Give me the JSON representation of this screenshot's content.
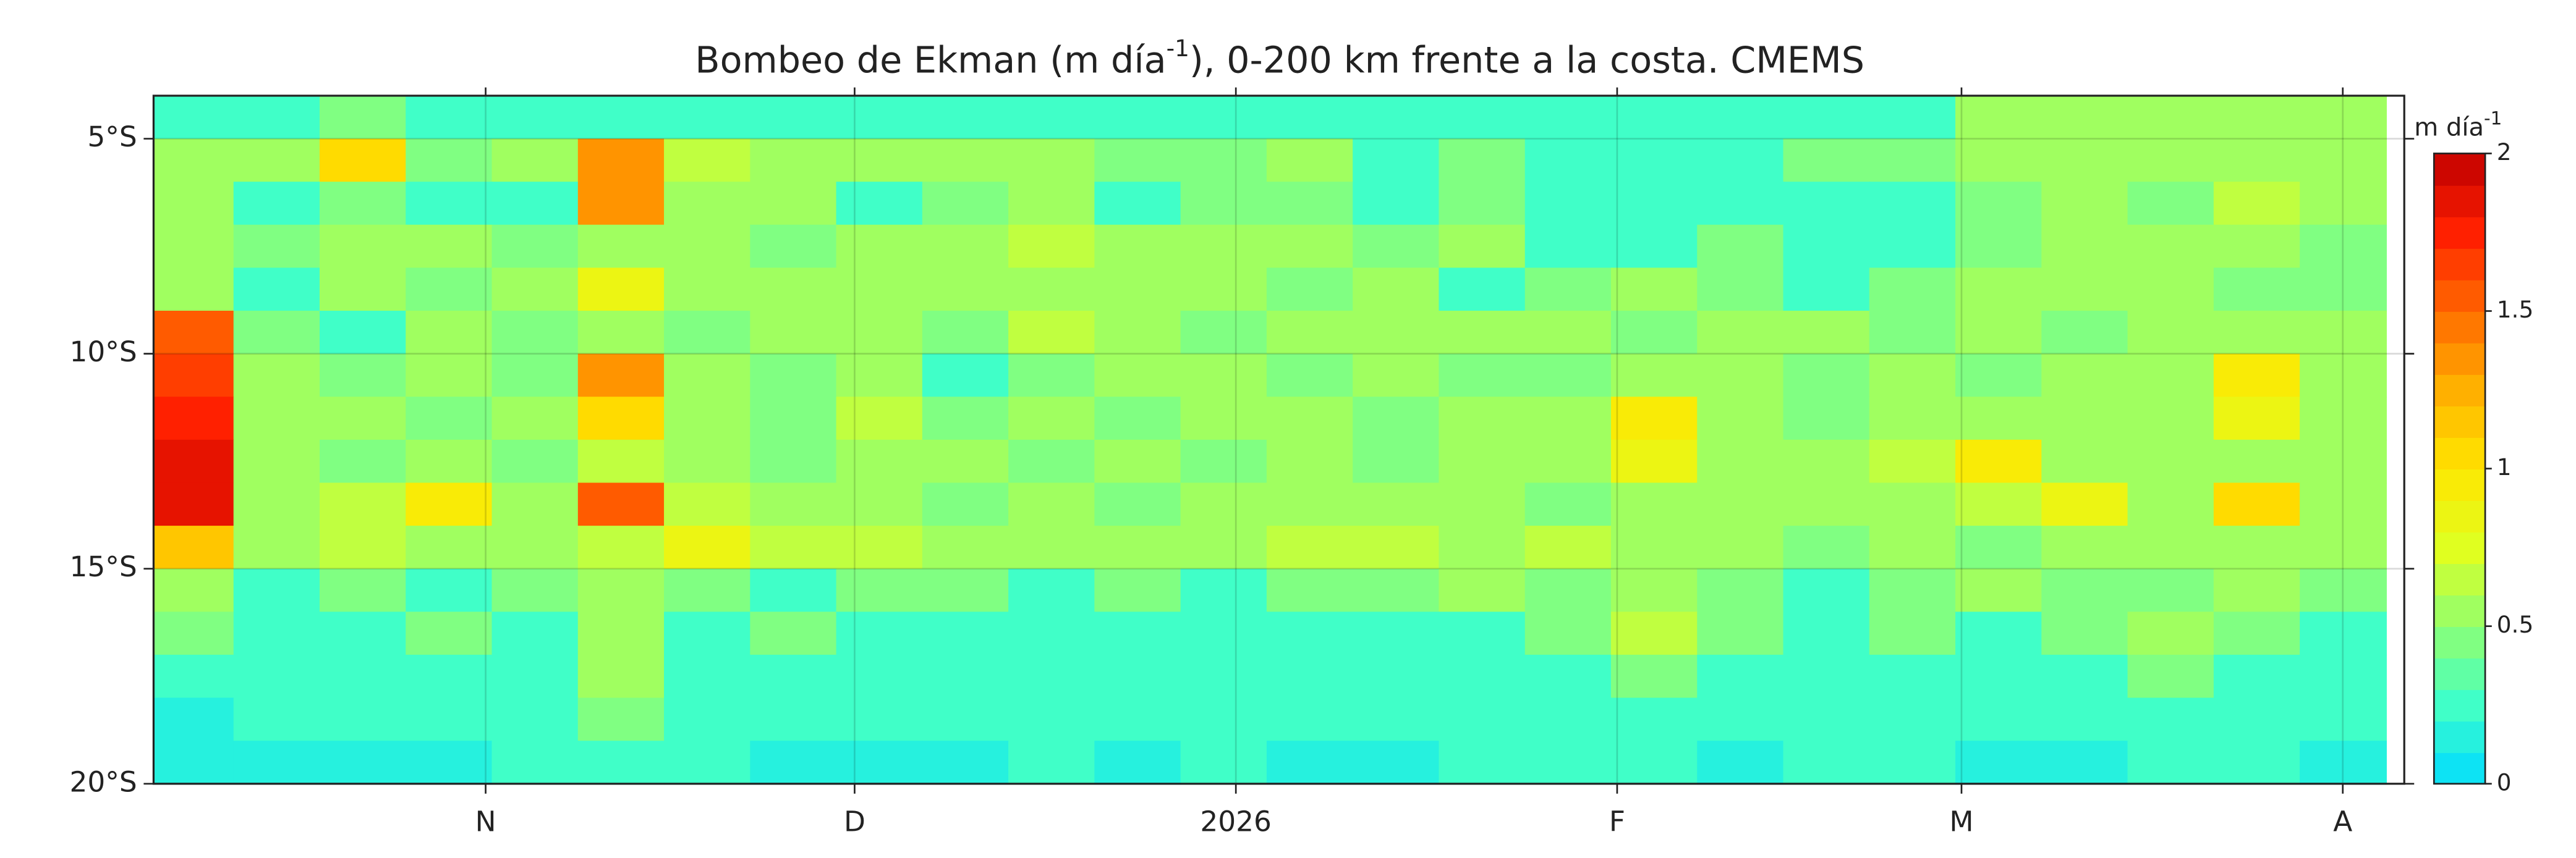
{
  "chart_data": {
    "type": "heatmap",
    "title": [
      "Bombeo de Ekman (m día",
      "-1",
      "), 0-200 km frente a la costa. CMEMS"
    ],
    "colorbar_label": [
      "m día",
      "-1"
    ],
    "xlim": [
      -27,
      156
    ],
    "xticks": [
      {
        "value": 0,
        "label": "N"
      },
      {
        "value": 30,
        "label": "D"
      },
      {
        "value": 61,
        "label": "2026"
      },
      {
        "value": 92,
        "label": "F"
      },
      {
        "value": 120,
        "label": "M"
      },
      {
        "value": 151,
        "label": "A"
      }
    ],
    "ylim": [
      -20,
      -4
    ],
    "yticks": [
      {
        "value": -5,
        "label": "5°S"
      },
      {
        "value": -10,
        "label": "10°S"
      },
      {
        "value": -15,
        "label": "15°S"
      },
      {
        "value": -20,
        "label": "20°S"
      }
    ],
    "grid": true,
    "x": [
      -24,
      -17,
      -10,
      -3,
      4,
      11,
      18,
      25,
      32,
      39,
      46,
      53,
      60,
      67,
      74,
      81,
      88,
      95,
      102,
      109,
      116,
      123,
      130,
      137,
      144,
      151
    ],
    "y": [
      -4.5,
      -5.5,
      -6.5,
      -7.5,
      -8.5,
      -9.5,
      -10.5,
      -11.5,
      -12.5,
      -13.5,
      -14.5,
      -15.5,
      -16.5,
      -17.5,
      -18.5,
      -19.5
    ],
    "z": [
      [
        0.2,
        0.3,
        0.4,
        0.2,
        0.3,
        0.2,
        0.2,
        0.3,
        0.2,
        0.2,
        0.3,
        0.2,
        0.2,
        0.2,
        0.3,
        0.2,
        0.2,
        0.2,
        0.2,
        0.2,
        0.3,
        0.5,
        0.6,
        0.6,
        0.5,
        0.5
      ],
      [
        0.6,
        0.5,
        1.0,
        0.4,
        0.5,
        1.3,
        0.7,
        0.6,
        0.5,
        0.6,
        0.5,
        0.4,
        0.4,
        0.5,
        0.3,
        0.4,
        0.3,
        0.3,
        0.3,
        0.4,
        0.4,
        0.5,
        0.6,
        0.6,
        0.5,
        0.6
      ],
      [
        0.5,
        0.3,
        0.4,
        0.2,
        0.3,
        1.4,
        0.6,
        0.5,
        0.3,
        0.4,
        0.5,
        0.3,
        0.4,
        0.4,
        0.3,
        0.4,
        0.2,
        0.3,
        0.3,
        0.2,
        0.3,
        0.4,
        0.5,
        0.4,
        0.7,
        0.5
      ],
      [
        0.5,
        0.4,
        0.5,
        0.5,
        0.4,
        0.6,
        0.5,
        0.4,
        0.5,
        0.6,
        0.7,
        0.5,
        0.6,
        0.5,
        0.4,
        0.5,
        0.3,
        0.3,
        0.4,
        0.3,
        0.3,
        0.4,
        0.5,
        0.5,
        0.5,
        0.4
      ],
      [
        0.5,
        0.3,
        0.6,
        0.4,
        0.5,
        0.8,
        0.6,
        0.5,
        0.6,
        0.5,
        0.6,
        0.5,
        0.5,
        0.4,
        0.5,
        0.3,
        0.4,
        0.5,
        0.4,
        0.3,
        0.4,
        0.5,
        0.5,
        0.6,
        0.4,
        0.4
      ],
      [
        1.5,
        0.4,
        0.3,
        0.5,
        0.4,
        0.6,
        0.4,
        0.5,
        0.6,
        0.4,
        0.7,
        0.5,
        0.4,
        0.5,
        0.6,
        0.5,
        0.5,
        0.4,
        0.6,
        0.5,
        0.4,
        0.5,
        0.4,
        0.5,
        0.6,
        0.5
      ],
      [
        1.6,
        0.5,
        0.4,
        0.5,
        0.4,
        1.3,
        0.5,
        0.4,
        0.5,
        0.3,
        0.4,
        0.5,
        0.6,
        0.4,
        0.5,
        0.4,
        0.4,
        0.6,
        0.5,
        0.4,
        0.5,
        0.4,
        0.5,
        0.6,
        0.9,
        0.6
      ],
      [
        1.7,
        0.6,
        0.5,
        0.4,
        0.5,
        1.0,
        0.6,
        0.4,
        0.7,
        0.4,
        0.5,
        0.4,
        0.5,
        0.6,
        0.4,
        0.5,
        0.6,
        0.9,
        0.5,
        0.4,
        0.6,
        0.5,
        0.5,
        0.6,
        0.8,
        0.5
      ],
      [
        1.8,
        0.5,
        0.4,
        0.5,
        0.4,
        0.7,
        0.5,
        0.4,
        0.5,
        0.5,
        0.4,
        0.5,
        0.4,
        0.5,
        0.4,
        0.5,
        0.5,
        0.8,
        0.5,
        0.6,
        0.7,
        0.9,
        0.6,
        0.5,
        0.6,
        0.6
      ],
      [
        1.9,
        0.6,
        0.7,
        0.9,
        0.5,
        1.5,
        0.7,
        0.6,
        0.5,
        0.4,
        0.5,
        0.4,
        0.5,
        0.6,
        0.5,
        0.6,
        0.4,
        0.5,
        0.6,
        0.5,
        0.5,
        0.7,
        0.8,
        0.6,
        1.0,
        0.6
      ],
      [
        1.1,
        0.6,
        0.7,
        0.6,
        0.6,
        0.7,
        0.8,
        0.7,
        0.7,
        0.6,
        0.6,
        0.6,
        0.5,
        0.7,
        0.7,
        0.6,
        0.7,
        0.5,
        0.5,
        0.4,
        0.5,
        0.4,
        0.5,
        0.5,
        0.5,
        0.5
      ],
      [
        0.5,
        0.3,
        0.4,
        0.3,
        0.4,
        0.6,
        0.4,
        0.3,
        0.4,
        0.4,
        0.3,
        0.4,
        0.3,
        0.4,
        0.4,
        0.5,
        0.4,
        0.6,
        0.4,
        0.3,
        0.4,
        0.5,
        0.4,
        0.4,
        0.5,
        0.4
      ],
      [
        0.4,
        0.3,
        0.3,
        0.4,
        0.3,
        0.6,
        0.3,
        0.4,
        0.3,
        0.3,
        0.2,
        0.3,
        0.3,
        0.3,
        0.3,
        0.3,
        0.4,
        0.7,
        0.4,
        0.3,
        0.4,
        0.3,
        0.4,
        0.5,
        0.4,
        0.3
      ],
      [
        0.2,
        0.2,
        0.3,
        0.2,
        0.3,
        0.5,
        0.3,
        0.2,
        0.3,
        0.2,
        0.2,
        0.3,
        0.2,
        0.2,
        0.2,
        0.2,
        0.3,
        0.4,
        0.3,
        0.3,
        0.3,
        0.3,
        0.3,
        0.4,
        0.3,
        0.2
      ],
      [
        0.1,
        0.2,
        0.2,
        0.2,
        0.2,
        0.4,
        0.3,
        0.2,
        0.2,
        0.2,
        0.2,
        0.2,
        0.2,
        0.2,
        0.2,
        0.2,
        0.3,
        0.3,
        0.2,
        0.3,
        0.3,
        0.2,
        0.2,
        0.3,
        0.2,
        0.2
      ],
      [
        0.1,
        0.1,
        0.1,
        0.1,
        0.2,
        0.2,
        0.2,
        0.1,
        0.1,
        0.1,
        0.2,
        0.1,
        0.2,
        0.1,
        0.1,
        0.2,
        0.2,
        0.2,
        0.1,
        0.2,
        0.2,
        0.1,
        0.1,
        0.2,
        0.2,
        0.1
      ]
    ],
    "clim": [
      0,
      2
    ],
    "levels": 20,
    "cticks": [
      0,
      0.5,
      1,
      1.5,
      2
    ],
    "colormap": [
      "#00dcff",
      "#40ffc8",
      "#90ff70",
      "#e0ff20",
      "#ffe600",
      "#ffb000",
      "#ff6a00",
      "#ff2000",
      "#c00000"
    ]
  }
}
